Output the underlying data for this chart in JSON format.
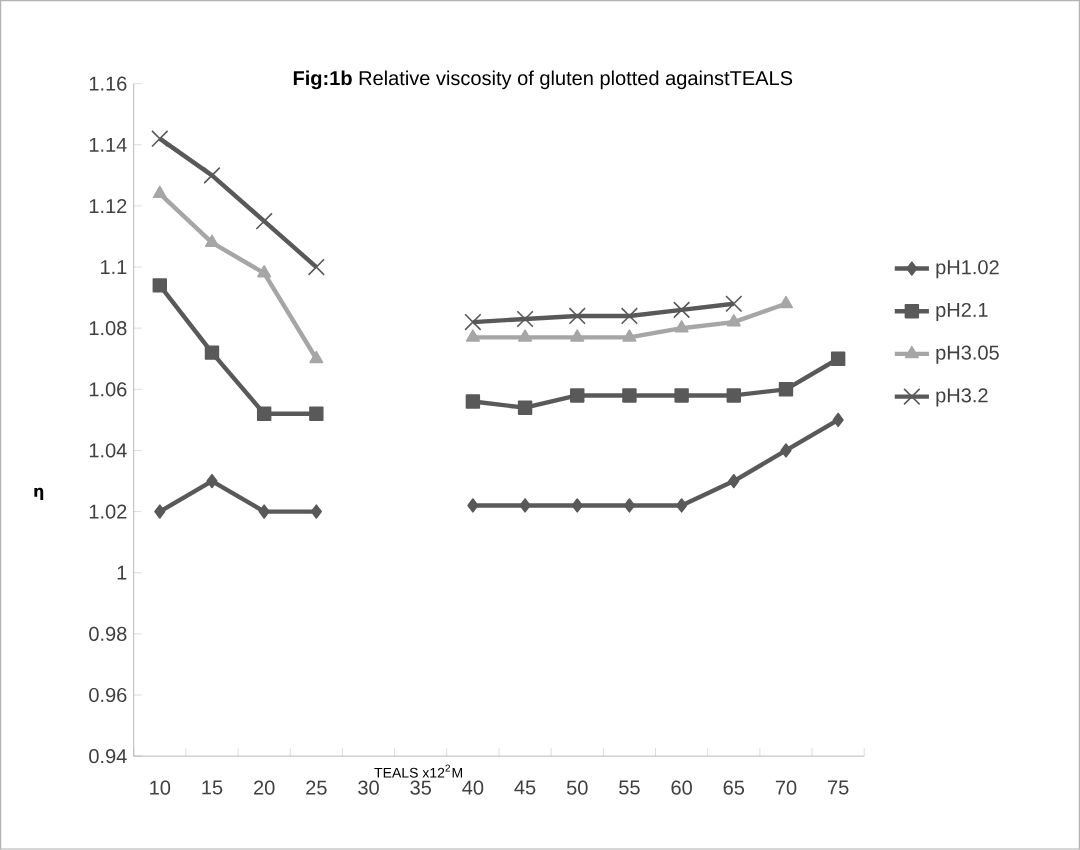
{
  "chart_data": {
    "type": "line",
    "title": "**Fig:1b** Relative viscosity of gluten plotted againstTEALS",
    "xlabel": "TEALS x12$^{2}$M",
    "ylabel": "η",
    "categories": [
      "10",
      "15",
      "20",
      "25",
      "30",
      "35",
      "40",
      "45",
      "50",
      "55",
      "60",
      "65",
      "70",
      "75"
    ],
    "ylim": [
      0.94,
      1.16
    ],
    "yticks": [
      0.94,
      0.96,
      0.98,
      1,
      1.02,
      1.04,
      1.06,
      1.08,
      1.1,
      1.12,
      1.14,
      1.16
    ],
    "grid": false,
    "legend": "right",
    "series": [
      {
        "name": "pH1.02",
        "color": "#595959",
        "marker": "diamond",
        "values": [
          1.02,
          1.03,
          1.02,
          1.02,
          null,
          null,
          1.022,
          1.022,
          1.022,
          1.022,
          1.022,
          1.03,
          1.04,
          1.05
        ]
      },
      {
        "name": "pH2.1",
        "color": "#595959",
        "marker": "square",
        "values": [
          1.094,
          1.072,
          1.052,
          1.052,
          null,
          null,
          1.056,
          1.054,
          1.058,
          1.058,
          1.058,
          1.058,
          1.06,
          1.07
        ]
      },
      {
        "name": "pH3.05",
        "color": "#a6a6a6",
        "marker": "triangle",
        "values": [
          1.124,
          1.108,
          1.098,
          1.07,
          null,
          null,
          1.077,
          1.077,
          1.077,
          1.077,
          1.08,
          1.082,
          1.088,
          null
        ]
      },
      {
        "name": "pH3.2",
        "color": "#595959",
        "marker": "cross",
        "values": [
          1.142,
          1.13,
          1.115,
          1.1,
          null,
          null,
          1.082,
          1.083,
          1.084,
          1.084,
          1.086,
          1.088,
          null,
          null
        ]
      }
    ]
  }
}
